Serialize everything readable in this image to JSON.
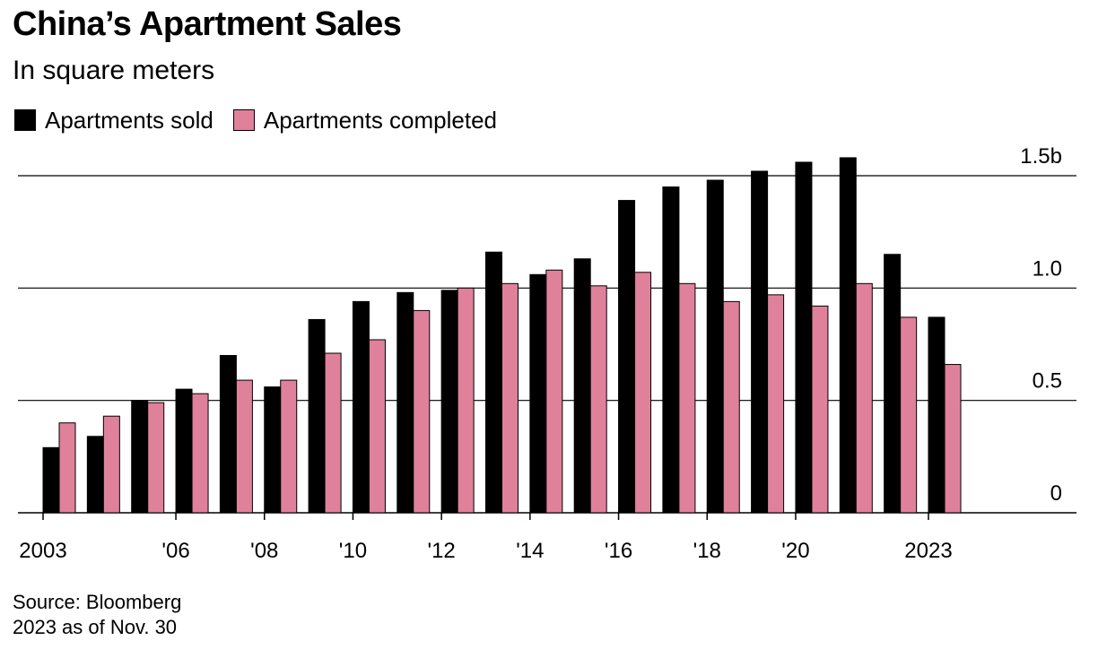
{
  "chart_data": {
    "type": "bar",
    "title": "China’s Apartment Sales",
    "subtitle": "In square meters",
    "categories": [
      "2003",
      "2004",
      "2005",
      "2006",
      "2007",
      "2008",
      "2009",
      "2010",
      "2011",
      "2012",
      "2013",
      "2014",
      "2015",
      "2016",
      "2017",
      "2018",
      "2019",
      "2020",
      "2021",
      "2022",
      "2023"
    ],
    "series": [
      {
        "name": "Apartments sold",
        "color": "#000000",
        "values": [
          0.29,
          0.34,
          0.5,
          0.55,
          0.7,
          0.56,
          0.86,
          0.94,
          0.98,
          0.99,
          1.16,
          1.06,
          1.13,
          1.39,
          1.45,
          1.48,
          1.52,
          1.56,
          1.58,
          1.15,
          0.87
        ]
      },
      {
        "name": "Apartments completed",
        "color": "#e0819b",
        "values": [
          0.4,
          0.43,
          0.49,
          0.53,
          0.59,
          0.59,
          0.71,
          0.77,
          0.9,
          1.0,
          1.02,
          1.08,
          1.01,
          1.07,
          1.02,
          0.94,
          0.97,
          0.92,
          1.02,
          0.87,
          0.66
        ]
      }
    ],
    "ylim": [
      0,
      1.5
    ],
    "y_ticks": [
      {
        "value": 0,
        "label": "0"
      },
      {
        "value": 0.5,
        "label": "0.5"
      },
      {
        "value": 1.0,
        "label": "1.0"
      },
      {
        "value": 1.5,
        "label": "1.5b"
      }
    ],
    "x_tick_labels": [
      {
        "index": 0,
        "label": "2003"
      },
      {
        "index": 3,
        "label": "'06"
      },
      {
        "index": 5,
        "label": "'08"
      },
      {
        "index": 7,
        "label": "'10"
      },
      {
        "index": 9,
        "label": "'12"
      },
      {
        "index": 11,
        "label": "'14"
      },
      {
        "index": 13,
        "label": "'16"
      },
      {
        "index": 15,
        "label": "'18"
      },
      {
        "index": 17,
        "label": "'20"
      },
      {
        "index": 20,
        "label": "2023"
      }
    ],
    "grid": true,
    "legend_position": "top-left"
  },
  "source": {
    "line1": "Source: Bloomberg",
    "line2": "2023 as of Nov. 30"
  }
}
